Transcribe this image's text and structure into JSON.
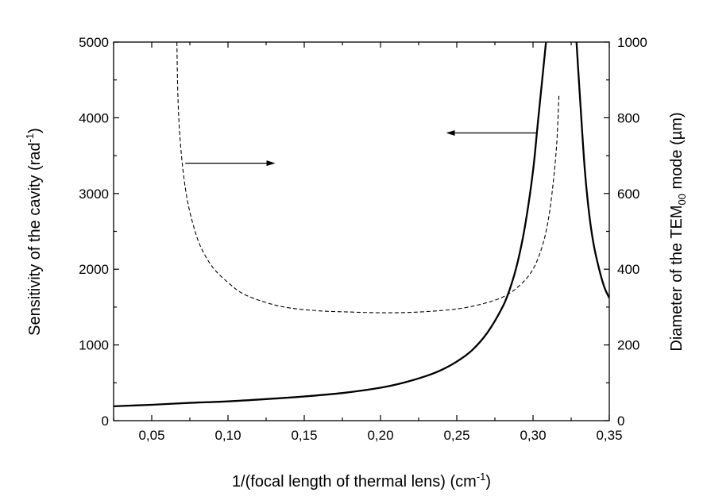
{
  "chart_data": {
    "type": "line",
    "title": "",
    "xlabel": {
      "text": "1/(focal length of thermal lens) (cm",
      "sup": "-1",
      "tail": ")"
    },
    "ylabel_left": {
      "text": "Sensitivity of the cavity (rad",
      "sup": "-1",
      "tail": ")"
    },
    "ylabel_right": {
      "text": "Diameter of the TEM",
      "sub": "00",
      "tail": " mode (µm)"
    },
    "xlim": [
      0.025,
      0.35
    ],
    "ylim_left": [
      0,
      5000
    ],
    "ylim_right": [
      0,
      1000
    ],
    "x_ticks": [
      0.05,
      0.1,
      0.15,
      0.2,
      0.25,
      0.3,
      0.35
    ],
    "x_tick_labels": [
      "0,05",
      "0,10",
      "0,15",
      "0,20",
      "0,25",
      "0,30",
      "0,35"
    ],
    "y_left_ticks": [
      0,
      1000,
      2000,
      3000,
      4000,
      5000
    ],
    "y_left_tick_labels": [
      "0",
      "1000",
      "2000",
      "3000",
      "4000",
      "5000"
    ],
    "y_right_ticks": [
      0,
      200,
      400,
      600,
      800,
      1000
    ],
    "y_right_tick_labels": [
      "0",
      "200",
      "400",
      "600",
      "800",
      "1000"
    ],
    "grid": false,
    "series": [
      {
        "style": "solid",
        "axis": "left",
        "points": [
          {
            "x": 0.025,
            "y": 190
          },
          {
            "x": 0.05,
            "y": 210
          },
          {
            "x": 0.075,
            "y": 235
          },
          {
            "x": 0.1,
            "y": 255
          },
          {
            "x": 0.125,
            "y": 285
          },
          {
            "x": 0.15,
            "y": 320
          },
          {
            "x": 0.175,
            "y": 365
          },
          {
            "x": 0.2,
            "y": 435
          },
          {
            "x": 0.215,
            "y": 500
          },
          {
            "x": 0.23,
            "y": 590
          },
          {
            "x": 0.24,
            "y": 670
          },
          {
            "x": 0.25,
            "y": 780
          },
          {
            "x": 0.26,
            "y": 930
          },
          {
            "x": 0.27,
            "y": 1160
          },
          {
            "x": 0.28,
            "y": 1500
          },
          {
            "x": 0.285,
            "y": 1750
          },
          {
            "x": 0.29,
            "y": 2100
          },
          {
            "x": 0.295,
            "y": 2600
          },
          {
            "x": 0.3,
            "y": 3300
          },
          {
            "x": 0.303,
            "y": 3900
          },
          {
            "x": 0.306,
            "y": 4500
          },
          {
            "x": 0.3085,
            "y": 5000
          },
          {
            "x": 0.3285,
            "y": 5000
          },
          {
            "x": 0.331,
            "y": 4200
          },
          {
            "x": 0.334,
            "y": 3300
          },
          {
            "x": 0.337,
            "y": 2700
          },
          {
            "x": 0.34,
            "y": 2300
          },
          {
            "x": 0.344,
            "y": 1950
          },
          {
            "x": 0.347,
            "y": 1750
          },
          {
            "x": 0.35,
            "y": 1620
          }
        ]
      },
      {
        "style": "dashed",
        "axis": "right",
        "points": [
          {
            "x": 0.0665,
            "y": 1000
          },
          {
            "x": 0.067,
            "y": 880
          },
          {
            "x": 0.068,
            "y": 780
          },
          {
            "x": 0.07,
            "y": 680
          },
          {
            "x": 0.073,
            "y": 590
          },
          {
            "x": 0.077,
            "y": 520
          },
          {
            "x": 0.082,
            "y": 460
          },
          {
            "x": 0.09,
            "y": 405
          },
          {
            "x": 0.1,
            "y": 365
          },
          {
            "x": 0.11,
            "y": 335
          },
          {
            "x": 0.125,
            "y": 312
          },
          {
            "x": 0.14,
            "y": 298
          },
          {
            "x": 0.16,
            "y": 290
          },
          {
            "x": 0.18,
            "y": 287
          },
          {
            "x": 0.2,
            "y": 285
          },
          {
            "x": 0.22,
            "y": 286
          },
          {
            "x": 0.24,
            "y": 291
          },
          {
            "x": 0.255,
            "y": 298
          },
          {
            "x": 0.27,
            "y": 312
          },
          {
            "x": 0.282,
            "y": 330
          },
          {
            "x": 0.292,
            "y": 360
          },
          {
            "x": 0.3,
            "y": 400
          },
          {
            "x": 0.306,
            "y": 460
          },
          {
            "x": 0.31,
            "y": 530
          },
          {
            "x": 0.313,
            "y": 620
          },
          {
            "x": 0.3155,
            "y": 730
          },
          {
            "x": 0.317,
            "y": 860
          }
        ]
      }
    ],
    "annotations": [
      {
        "type": "arrow",
        "direction": "right",
        "series": "dashed",
        "from": {
          "x": 0.072,
          "y": 3400
        },
        "to": {
          "x": 0.131,
          "y": 3400
        }
      },
      {
        "type": "arrow",
        "direction": "left",
        "series": "solid",
        "from": {
          "x": 0.302,
          "y": 3800
        },
        "to": {
          "x": 0.243,
          "y": 3800
        }
      }
    ]
  }
}
